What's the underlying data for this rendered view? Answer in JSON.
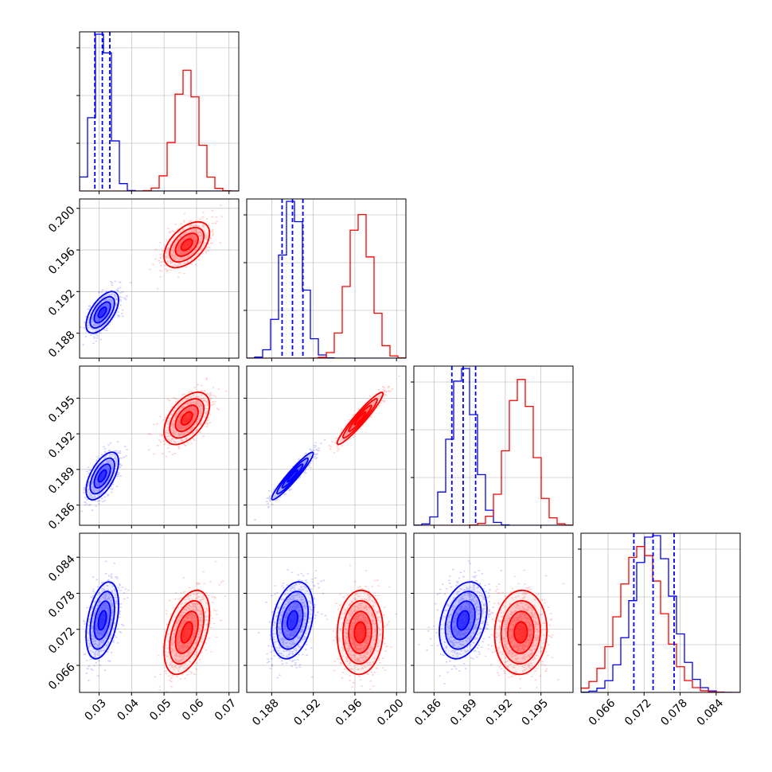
{
  "chart_data": {
    "type": "corner",
    "params": [
      {
        "range": [
          0.024,
          0.073
        ],
        "ticks": [
          0.03,
          0.04,
          0.05,
          0.06,
          0.07
        ],
        "labels": [
          "0.03",
          "0.04",
          "0.05",
          "0.06",
          "0.07"
        ]
      },
      {
        "range": [
          0.1856,
          0.2009
        ],
        "ticks": [
          0.188,
          0.192,
          0.196,
          0.2
        ],
        "labels": [
          "0.188",
          "0.192",
          "0.196",
          "0.200"
        ]
      },
      {
        "range": [
          0.1843,
          0.1977
        ],
        "ticks": [
          0.186,
          0.189,
          0.192,
          0.195
        ],
        "labels": [
          "0.186",
          "0.189",
          "0.192",
          "0.195"
        ]
      },
      {
        "range": [
          0.0615,
          0.088
        ],
        "ticks": [
          0.066,
          0.072,
          0.078,
          0.084
        ],
        "labels": [
          "0.066",
          "0.072",
          "0.078",
          "0.084"
        ]
      }
    ],
    "series": [
      {
        "color": "#0000ff",
        "mean": [
          0.031,
          0.19,
          0.18845,
          0.0735
        ],
        "std": [
          0.0025,
          0.001,
          0.001,
          0.0032
        ],
        "quantiles_16_50_84": [
          [
            0.0287,
            0.031,
            0.0333
          ],
          [
            0.189,
            0.19,
            0.191
          ],
          [
            0.1875,
            0.18845,
            0.1895
          ],
          [
            0.0703,
            0.0735,
            0.077
          ]
        ],
        "correlation": [
          [
            1,
            0.6,
            0.6,
            0.4
          ],
          [
            0.6,
            1,
            0.95,
            0.3
          ],
          [
            0.6,
            0.95,
            1,
            0.3
          ],
          [
            0.4,
            0.3,
            0.3,
            1
          ]
        ]
      },
      {
        "color": "#ff0000",
        "mean": [
          0.057,
          0.1965,
          0.1933,
          0.0715
        ],
        "std": [
          0.0035,
          0.0011,
          0.0011,
          0.0035
        ],
        "correlation": [
          [
            1,
            0.5,
            0.5,
            0.45
          ],
          [
            0.5,
            1,
            0.95,
            0.05
          ],
          [
            0.5,
            0.95,
            1,
            0.05
          ],
          [
            0.45,
            0.05,
            0.05,
            1
          ]
        ]
      }
    ],
    "grid": true
  }
}
